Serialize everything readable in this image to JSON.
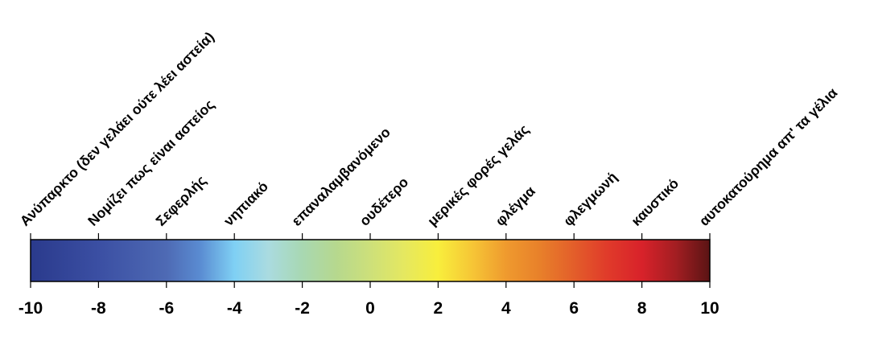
{
  "scale": {
    "min": -10,
    "max": 10,
    "tick_values": [
      -10,
      -8,
      -6,
      -4,
      -2,
      0,
      2,
      4,
      6,
      8,
      10
    ],
    "tick_labels": [
      "-10",
      "-8",
      "-6",
      "-4",
      "-2",
      "0",
      "2",
      "4",
      "6",
      "8",
      "10"
    ],
    "category_labels": [
      {
        "value": -10,
        "label": "Ανύπαρκτο (δεν γελάει ούτε λέει αστεία)"
      },
      {
        "value": -8,
        "label": "Νομίζει πως είναι αστείος"
      },
      {
        "value": -6,
        "label": "Σεφερλής"
      },
      {
        "value": -4,
        "label": "νηπιακό"
      },
      {
        "value": -2,
        "label": "επαναλαμβανόμενο"
      },
      {
        "value": 0,
        "label": "ουδέτερο"
      },
      {
        "value": 2,
        "label": "μερικές φορές γελάς"
      },
      {
        "value": 4,
        "label": "φλέγμα"
      },
      {
        "value": 6,
        "label": "φλεγμωνή"
      },
      {
        "value": 8,
        "label": "καυστικό"
      },
      {
        "value": 10,
        "label": "αυτοκατούρημα απ' τα γέλια"
      }
    ],
    "gradient_colors": [
      {
        "value": -10,
        "color": "#2a3a8c"
      },
      {
        "value": -8,
        "color": "#3b4fa3"
      },
      {
        "value": -6,
        "color": "#4e6ab4"
      },
      {
        "value": -5,
        "color": "#5a8cd2"
      },
      {
        "value": -4,
        "color": "#7fd0f4"
      },
      {
        "value": -3,
        "color": "#aadbe0"
      },
      {
        "value": -2,
        "color": "#a8d8b2"
      },
      {
        "value": -1,
        "color": "#b6d88e"
      },
      {
        "value": 0,
        "color": "#cde07a"
      },
      {
        "value": 1,
        "color": "#e5e860"
      },
      {
        "value": 2,
        "color": "#f8ee3c"
      },
      {
        "value": 3,
        "color": "#f6c636"
      },
      {
        "value": 4,
        "color": "#ef9a2e"
      },
      {
        "value": 5,
        "color": "#e8802a"
      },
      {
        "value": 6,
        "color": "#e35e2a"
      },
      {
        "value": 7,
        "color": "#e03a2a"
      },
      {
        "value": 8,
        "color": "#d8222a"
      },
      {
        "value": 9,
        "color": "#a31e22"
      },
      {
        "value": 10,
        "color": "#5a1414"
      }
    ]
  }
}
